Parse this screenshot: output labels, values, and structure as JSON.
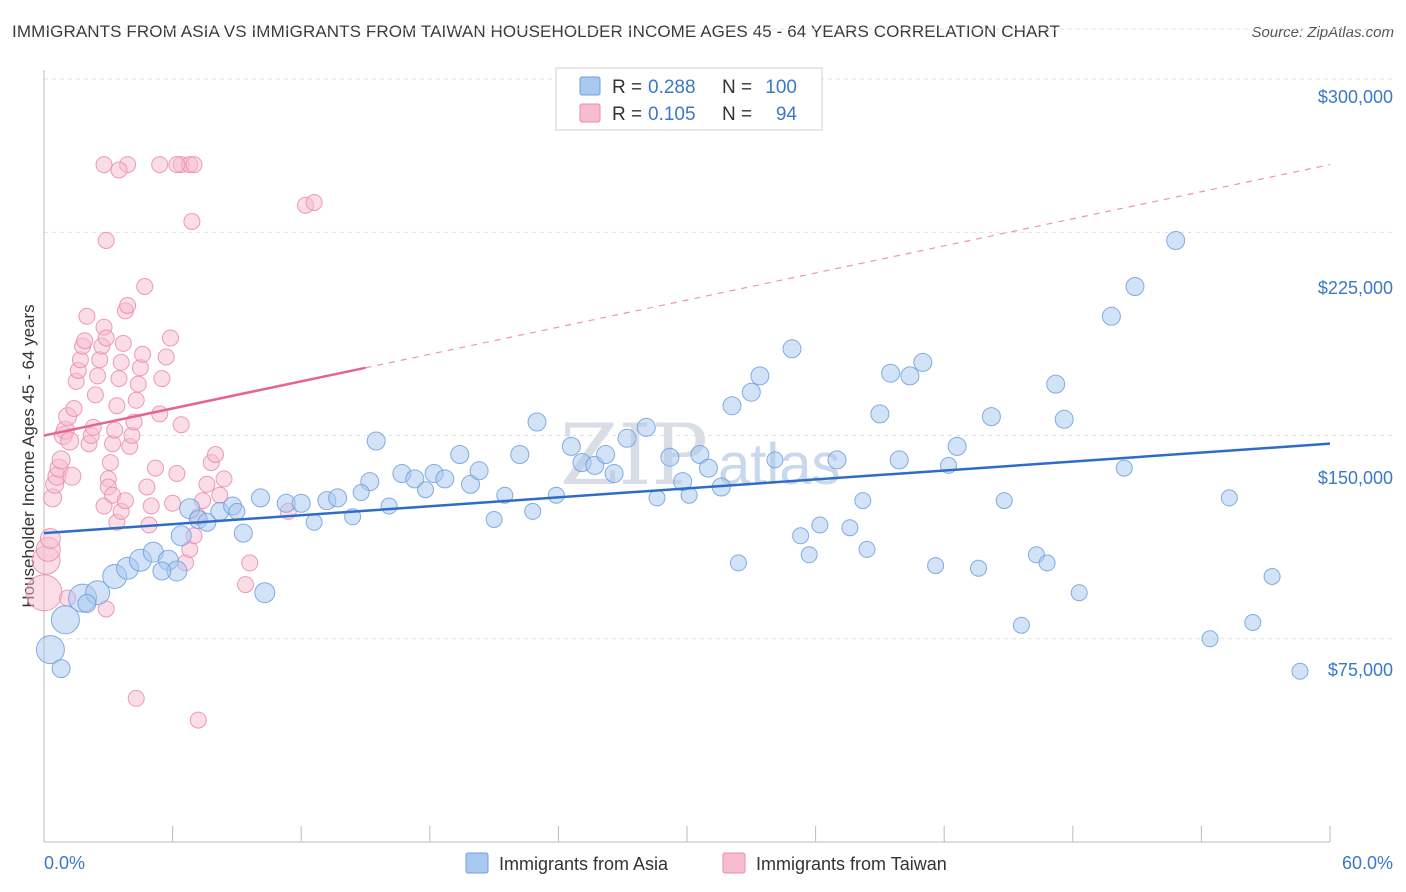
{
  "title": "IMMIGRANTS FROM ASIA VS IMMIGRANTS FROM TAIWAN HOUSEHOLDER INCOME AGES 45 - 64 YEARS CORRELATION CHART",
  "source": "Source: ZipAtlas.com",
  "watermark": {
    "zip": "ZIP",
    "atlas": "atlas"
  },
  "legend": {
    "r_label": "R =",
    "n_label": "N =",
    "rows": [
      {
        "r": "0.288",
        "n": "100",
        "color": "#a8c8ef",
        "stroke": "#6f9fdc"
      },
      {
        "r": "0.105",
        "n": "94",
        "color": "#f7bcd0",
        "stroke": "#e98bab"
      }
    ]
  },
  "bottom_legend": [
    "Immigrants from Asia",
    "Immigrants from Taiwan"
  ],
  "chart_data": {
    "type": "scatter",
    "title": "IMMIGRANTS FROM ASIA VS IMMIGRANTS FROM TAIWAN HOUSEHOLDER INCOME AGES 45 - 64 YEARS CORRELATION CHART",
    "xlabel": "",
    "ylabel": "Householder Income Ages 45 - 64 years",
    "xlim": [
      0,
      60
    ],
    "ylim": [
      0,
      310000
    ],
    "x_tick_labels": [
      "0.0%",
      "60.0%"
    ],
    "y_ticks": [
      75000,
      150000,
      225000,
      300000
    ],
    "y_tick_labels": [
      "$75,000",
      "$150,000",
      "$225,000",
      "$300,000"
    ],
    "grid": true,
    "legend_position": "top-center",
    "series": [
      {
        "name": "Immigrants from Asia",
        "color": "#a8c8ef",
        "stroke": "#6f9fdc",
        "trend": {
          "x": [
            0,
            60
          ],
          "y": [
            114000,
            147000
          ],
          "color": "#2f6cc8"
        },
        "points": [
          [
            0.3,
            71000,
            14
          ],
          [
            1.0,
            82000,
            14
          ],
          [
            1.8,
            90000,
            14
          ],
          [
            2.5,
            92000,
            12
          ],
          [
            3.3,
            98000,
            12
          ],
          [
            3.9,
            101000,
            11
          ],
          [
            4.5,
            104000,
            11
          ],
          [
            5.1,
            107000,
            10
          ],
          [
            5.8,
            104000,
            10
          ],
          [
            6.2,
            100000,
            10
          ],
          [
            6.4,
            113000,
            10
          ],
          [
            6.8,
            123000,
            10
          ],
          [
            7.2,
            119000,
            9
          ],
          [
            7.6,
            118000,
            9
          ],
          [
            8.2,
            122000,
            9
          ],
          [
            8.8,
            124000,
            9
          ],
          [
            9.3,
            114000,
            9
          ],
          [
            10.3,
            92000,
            10
          ],
          [
            10.1,
            127000,
            9
          ],
          [
            11.3,
            125000,
            9
          ],
          [
            12.0,
            125000,
            9
          ],
          [
            12.6,
            118000,
            8
          ],
          [
            13.2,
            126000,
            9
          ],
          [
            13.7,
            127000,
            9
          ],
          [
            14.4,
            120000,
            8
          ],
          [
            15.2,
            133000,
            9
          ],
          [
            15.5,
            148000,
            9
          ],
          [
            16.1,
            124000,
            8
          ],
          [
            16.7,
            136000,
            9
          ],
          [
            17.3,
            134000,
            9
          ],
          [
            17.8,
            130000,
            8
          ],
          [
            18.2,
            136000,
            9
          ],
          [
            18.7,
            134000,
            9
          ],
          [
            19.4,
            143000,
            9
          ],
          [
            19.9,
            132000,
            9
          ],
          [
            20.3,
            137000,
            9
          ],
          [
            21.0,
            119000,
            8
          ],
          [
            21.5,
            128000,
            8
          ],
          [
            22.2,
            143000,
            9
          ],
          [
            22.8,
            122000,
            8
          ],
          [
            23.0,
            155000,
            9
          ],
          [
            23.9,
            128000,
            8
          ],
          [
            24.6,
            146000,
            9
          ],
          [
            25.1,
            140000,
            9
          ],
          [
            25.7,
            139000,
            9
          ],
          [
            26.2,
            143000,
            9
          ],
          [
            26.6,
            136000,
            9
          ],
          [
            27.2,
            149000,
            9
          ],
          [
            28.1,
            153000,
            9
          ],
          [
            28.6,
            127000,
            8
          ],
          [
            29.2,
            142000,
            9
          ],
          [
            29.8,
            133000,
            9
          ],
          [
            30.1,
            128000,
            8
          ],
          [
            30.6,
            143000,
            9
          ],
          [
            31.0,
            138000,
            9
          ],
          [
            31.6,
            131000,
            9
          ],
          [
            32.1,
            161000,
            9
          ],
          [
            32.4,
            103000,
            8
          ],
          [
            33.0,
            166000,
            9
          ],
          [
            33.4,
            172000,
            9
          ],
          [
            34.1,
            141000,
            8
          ],
          [
            34.9,
            182000,
            9
          ],
          [
            35.3,
            113000,
            8
          ],
          [
            35.7,
            106000,
            8
          ],
          [
            36.2,
            117000,
            8
          ],
          [
            37.0,
            141000,
            9
          ],
          [
            37.6,
            116000,
            8
          ],
          [
            38.2,
            126000,
            8
          ],
          [
            38.4,
            108000,
            8
          ],
          [
            39.0,
            158000,
            9
          ],
          [
            39.5,
            173000,
            9
          ],
          [
            39.9,
            141000,
            9
          ],
          [
            40.4,
            172000,
            9
          ],
          [
            41.0,
            177000,
            9
          ],
          [
            41.6,
            102000,
            8
          ],
          [
            42.2,
            139000,
            8
          ],
          [
            42.6,
            146000,
            9
          ],
          [
            43.6,
            101000,
            8
          ],
          [
            44.2,
            157000,
            9
          ],
          [
            44.8,
            126000,
            8
          ],
          [
            45.6,
            80000,
            8
          ],
          [
            46.3,
            106000,
            8
          ],
          [
            46.8,
            103000,
            8
          ],
          [
            47.2,
            169000,
            9
          ],
          [
            47.6,
            156000,
            9
          ],
          [
            48.3,
            92000,
            8
          ],
          [
            49.8,
            194000,
            9
          ],
          [
            50.4,
            138000,
            8
          ],
          [
            50.9,
            205000,
            9
          ],
          [
            52.8,
            222000,
            9
          ],
          [
            54.4,
            75000,
            8
          ],
          [
            55.3,
            127000,
            8
          ],
          [
            56.4,
            81000,
            8
          ],
          [
            57.3,
            98000,
            8
          ],
          [
            58.6,
            63000,
            8
          ],
          [
            0.8,
            64000,
            9
          ],
          [
            2.0,
            88000,
            9
          ],
          [
            5.5,
            100000,
            9
          ],
          [
            9.0,
            122000,
            8
          ],
          [
            14.8,
            129000,
            8
          ]
        ]
      },
      {
        "name": "Immigrants from Taiwan",
        "color": "#f7bcd0",
        "stroke": "#e98bab",
        "trend": {
          "x": [
            0,
            15
          ],
          "y": [
            150000,
            175000
          ],
          "x_dash_end": 60,
          "y_dash_end": 250000,
          "color": "#e46690"
        },
        "points": [
          [
            0.0,
            92000,
            18
          ],
          [
            0.1,
            104000,
            14
          ],
          [
            0.2,
            108000,
            12
          ],
          [
            0.3,
            112000,
            10
          ],
          [
            0.4,
            127000,
            9
          ],
          [
            0.5,
            132000,
            9
          ],
          [
            0.6,
            135000,
            9
          ],
          [
            0.7,
            138000,
            9
          ],
          [
            0.8,
            141000,
            9
          ],
          [
            0.9,
            150000,
            9
          ],
          [
            1.0,
            152000,
            9
          ],
          [
            1.1,
            157000,
            9
          ],
          [
            1.2,
            148000,
            9
          ],
          [
            1.3,
            135000,
            9
          ],
          [
            1.4,
            160000,
            8
          ],
          [
            1.5,
            170000,
            8
          ],
          [
            1.6,
            174000,
            8
          ],
          [
            1.7,
            178000,
            8
          ],
          [
            1.8,
            183000,
            8
          ],
          [
            1.9,
            185000,
            8
          ],
          [
            2.0,
            194000,
            8
          ],
          [
            2.1,
            147000,
            8
          ],
          [
            2.2,
            150000,
            8
          ],
          [
            2.3,
            153000,
            8
          ],
          [
            2.4,
            165000,
            8
          ],
          [
            2.5,
            172000,
            8
          ],
          [
            2.6,
            178000,
            8
          ],
          [
            2.7,
            183000,
            8
          ],
          [
            2.8,
            190000,
            8
          ],
          [
            2.9,
            186000,
            8
          ],
          [
            3.0,
            134000,
            8
          ],
          [
            3.1,
            140000,
            8
          ],
          [
            3.2,
            147000,
            8
          ],
          [
            3.3,
            152000,
            8
          ],
          [
            3.4,
            161000,
            8
          ],
          [
            3.5,
            171000,
            8
          ],
          [
            3.6,
            177000,
            8
          ],
          [
            3.7,
            184000,
            8
          ],
          [
            3.8,
            196000,
            8
          ],
          [
            3.9,
            198000,
            8
          ],
          [
            2.8,
            124000,
            8
          ],
          [
            3.0,
            131000,
            8
          ],
          [
            3.2,
            128000,
            8
          ],
          [
            3.4,
            118000,
            8
          ],
          [
            3.6,
            122000,
            8
          ],
          [
            3.8,
            126000,
            8
          ],
          [
            4.0,
            146000,
            8
          ],
          [
            4.1,
            150000,
            8
          ],
          [
            4.2,
            155000,
            8
          ],
          [
            4.3,
            163000,
            8
          ],
          [
            4.4,
            169000,
            8
          ],
          [
            4.5,
            175000,
            8
          ],
          [
            4.6,
            180000,
            8
          ],
          [
            4.7,
            205000,
            8
          ],
          [
            4.8,
            131000,
            8
          ],
          [
            4.9,
            117000,
            8
          ],
          [
            5.0,
            124000,
            8
          ],
          [
            5.2,
            138000,
            8
          ],
          [
            5.4,
            158000,
            8
          ],
          [
            5.5,
            171000,
            8
          ],
          [
            5.7,
            179000,
            8
          ],
          [
            5.9,
            186000,
            8
          ],
          [
            6.0,
            125000,
            8
          ],
          [
            6.2,
            136000,
            8
          ],
          [
            6.4,
            154000,
            8
          ],
          [
            6.6,
            103000,
            8
          ],
          [
            6.8,
            108000,
            8
          ],
          [
            7.0,
            113000,
            8
          ],
          [
            7.2,
            120000,
            8
          ],
          [
            7.4,
            126000,
            8
          ],
          [
            7.6,
            132000,
            8
          ],
          [
            7.8,
            140000,
            8
          ],
          [
            8.0,
            143000,
            8
          ],
          [
            8.2,
            128000,
            8
          ],
          [
            8.4,
            134000,
            8
          ],
          [
            9.4,
            95000,
            8
          ],
          [
            9.6,
            103000,
            8
          ],
          [
            11.4,
            122000,
            8
          ],
          [
            12.2,
            235000,
            8
          ],
          [
            12.6,
            236000,
            8
          ],
          [
            2.8,
            250000,
            8
          ],
          [
            3.9,
            250000,
            8
          ],
          [
            5.4,
            250000,
            8
          ],
          [
            6.4,
            250000,
            8
          ],
          [
            6.8,
            250000,
            8
          ],
          [
            7.0,
            250000,
            8
          ],
          [
            6.9,
            229000,
            8
          ],
          [
            2.9,
            222000,
            8
          ],
          [
            3.5,
            248000,
            8
          ],
          [
            6.2,
            250000,
            8
          ],
          [
            4.3,
            53000,
            8
          ],
          [
            7.2,
            45000,
            8
          ],
          [
            1.1,
            90000,
            8
          ],
          [
            2.9,
            86000,
            8
          ]
        ]
      }
    ]
  }
}
